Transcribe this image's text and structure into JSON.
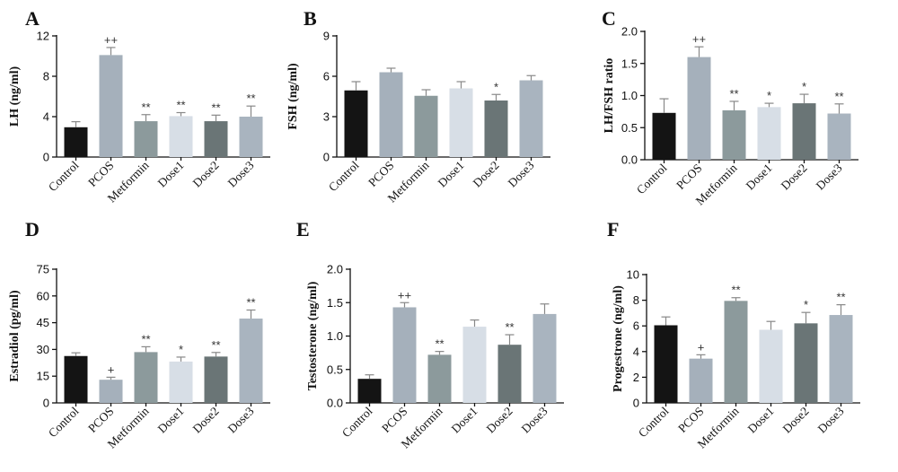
{
  "colors": [
    "#141414",
    "#a5b0bb",
    "#8c9a9c",
    "#d7dee6",
    "#6a7576",
    "#a9b4bf"
  ],
  "chart_data": [
    {
      "panel": "A",
      "type": "bar",
      "ylabel": "LH (ng/ml)",
      "categories": [
        "Control",
        "PCOS",
        "Metformin",
        "Dose1",
        "Dose2",
        "Dose3"
      ],
      "values": [
        2.95,
        10.1,
        3.55,
        4.05,
        3.55,
        4.0
      ],
      "errors": [
        0.55,
        0.75,
        0.65,
        0.35,
        0.6,
        1.05
      ],
      "annotations": [
        "",
        "++",
        "**",
        "**",
        "**",
        "**"
      ],
      "ylim": [
        0,
        12
      ],
      "yticks": [
        "0",
        "4",
        "8",
        "12"
      ]
    },
    {
      "panel": "B",
      "type": "bar",
      "ylabel": "FSH (ng/ml)",
      "categories": [
        "Control",
        "PCOS",
        "Metformin",
        "Dose1",
        "Dose2",
        "Dose3"
      ],
      "values": [
        4.95,
        6.3,
        4.55,
        5.1,
        4.2,
        5.7
      ],
      "errors": [
        0.65,
        0.3,
        0.45,
        0.5,
        0.45,
        0.35
      ],
      "annotations": [
        "",
        "",
        "",
        "",
        "*",
        ""
      ],
      "ylim": [
        0,
        9
      ],
      "yticks": [
        "0",
        "3",
        "6",
        "9"
      ]
    },
    {
      "panel": "C",
      "type": "bar",
      "ylabel": "LH/FSH ratio",
      "categories": [
        "Control",
        "PCOS",
        "Metformin",
        "Dose1",
        "Dose2",
        "Dose3"
      ],
      "values": [
        0.73,
        1.6,
        0.77,
        0.82,
        0.88,
        0.72
      ],
      "errors": [
        0.22,
        0.16,
        0.14,
        0.06,
        0.14,
        0.15
      ],
      "annotations": [
        "",
        "++",
        "**",
        "*",
        "*",
        "**"
      ],
      "ylim": [
        0,
        2
      ],
      "yticks": [
        "0.0",
        "0.5",
        "1.0",
        "1.5",
        "2.0"
      ]
    },
    {
      "panel": "D",
      "type": "bar",
      "ylabel": "Estradiol (pg/ml)",
      "categories": [
        "Control",
        "PCOS",
        "Metformin",
        "Dose1",
        "Dose2",
        "Dose3"
      ],
      "values": [
        26.3,
        13.0,
        28.5,
        23.2,
        26.0,
        47.3
      ],
      "errors": [
        1.8,
        1.4,
        3.0,
        2.5,
        2.3,
        4.8
      ],
      "annotations": [
        "",
        "+",
        "**",
        "*",
        "**",
        "**"
      ],
      "ylim": [
        0,
        75
      ],
      "yticks": [
        "0",
        "15",
        "30",
        "45",
        "60",
        "75"
      ]
    },
    {
      "panel": "E",
      "type": "bar",
      "ylabel": "Testosterone (ng/ml)",
      "categories": [
        "Control",
        "PCOS",
        "Metformin",
        "Dose1",
        "Dose2",
        "Dose3"
      ],
      "values": [
        0.36,
        1.43,
        0.72,
        1.14,
        0.87,
        1.33
      ],
      "errors": [
        0.06,
        0.07,
        0.05,
        0.1,
        0.15,
        0.15
      ],
      "annotations": [
        "",
        "++",
        "**",
        "",
        "**",
        ""
      ],
      "ylim": [
        0,
        2
      ],
      "yticks": [
        "0.0",
        "0.5",
        "1.0",
        "1.5",
        "2.0"
      ]
    },
    {
      "panel": "F",
      "type": "bar",
      "ylabel": "Progestrone (ng/ml)",
      "categories": [
        "Control",
        "PCOS",
        "Metformin",
        "Dose1",
        "Dose2",
        "Dose3"
      ],
      "values": [
        6.05,
        3.45,
        7.95,
        5.7,
        6.2,
        6.85
      ],
      "errors": [
        0.65,
        0.3,
        0.25,
        0.65,
        0.85,
        0.8
      ],
      "annotations": [
        "",
        "+",
        "**",
        "",
        "*",
        "**"
      ],
      "ylim": [
        0,
        10
      ],
      "yticks": [
        "0",
        "2",
        "4",
        "6",
        "8",
        "10"
      ]
    }
  ]
}
